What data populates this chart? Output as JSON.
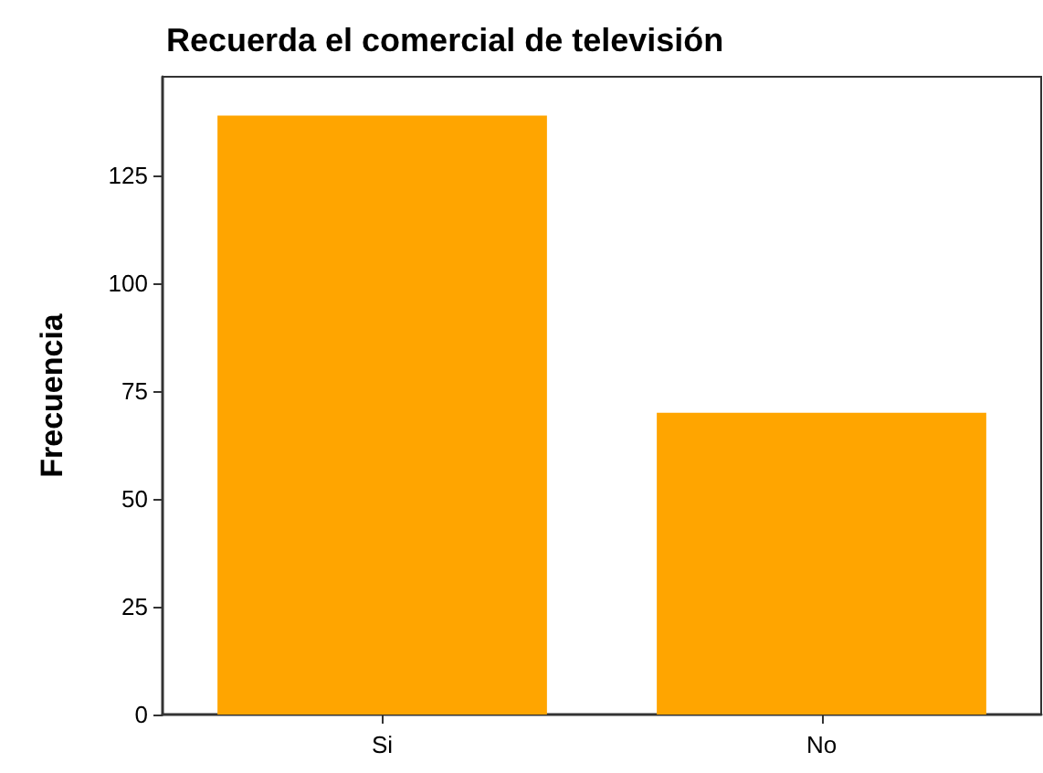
{
  "chart_data": {
    "type": "bar",
    "title": "Recuerda el comercial de televisión",
    "ylabel": "Frecuencia",
    "categories": [
      "Si",
      "No"
    ],
    "values": [
      139,
      70
    ],
    "color": "#ffa500",
    "ylim": [
      0,
      148
    ],
    "yticks": [
      0,
      25,
      50,
      75,
      100,
      125
    ],
    "grid": false
  }
}
